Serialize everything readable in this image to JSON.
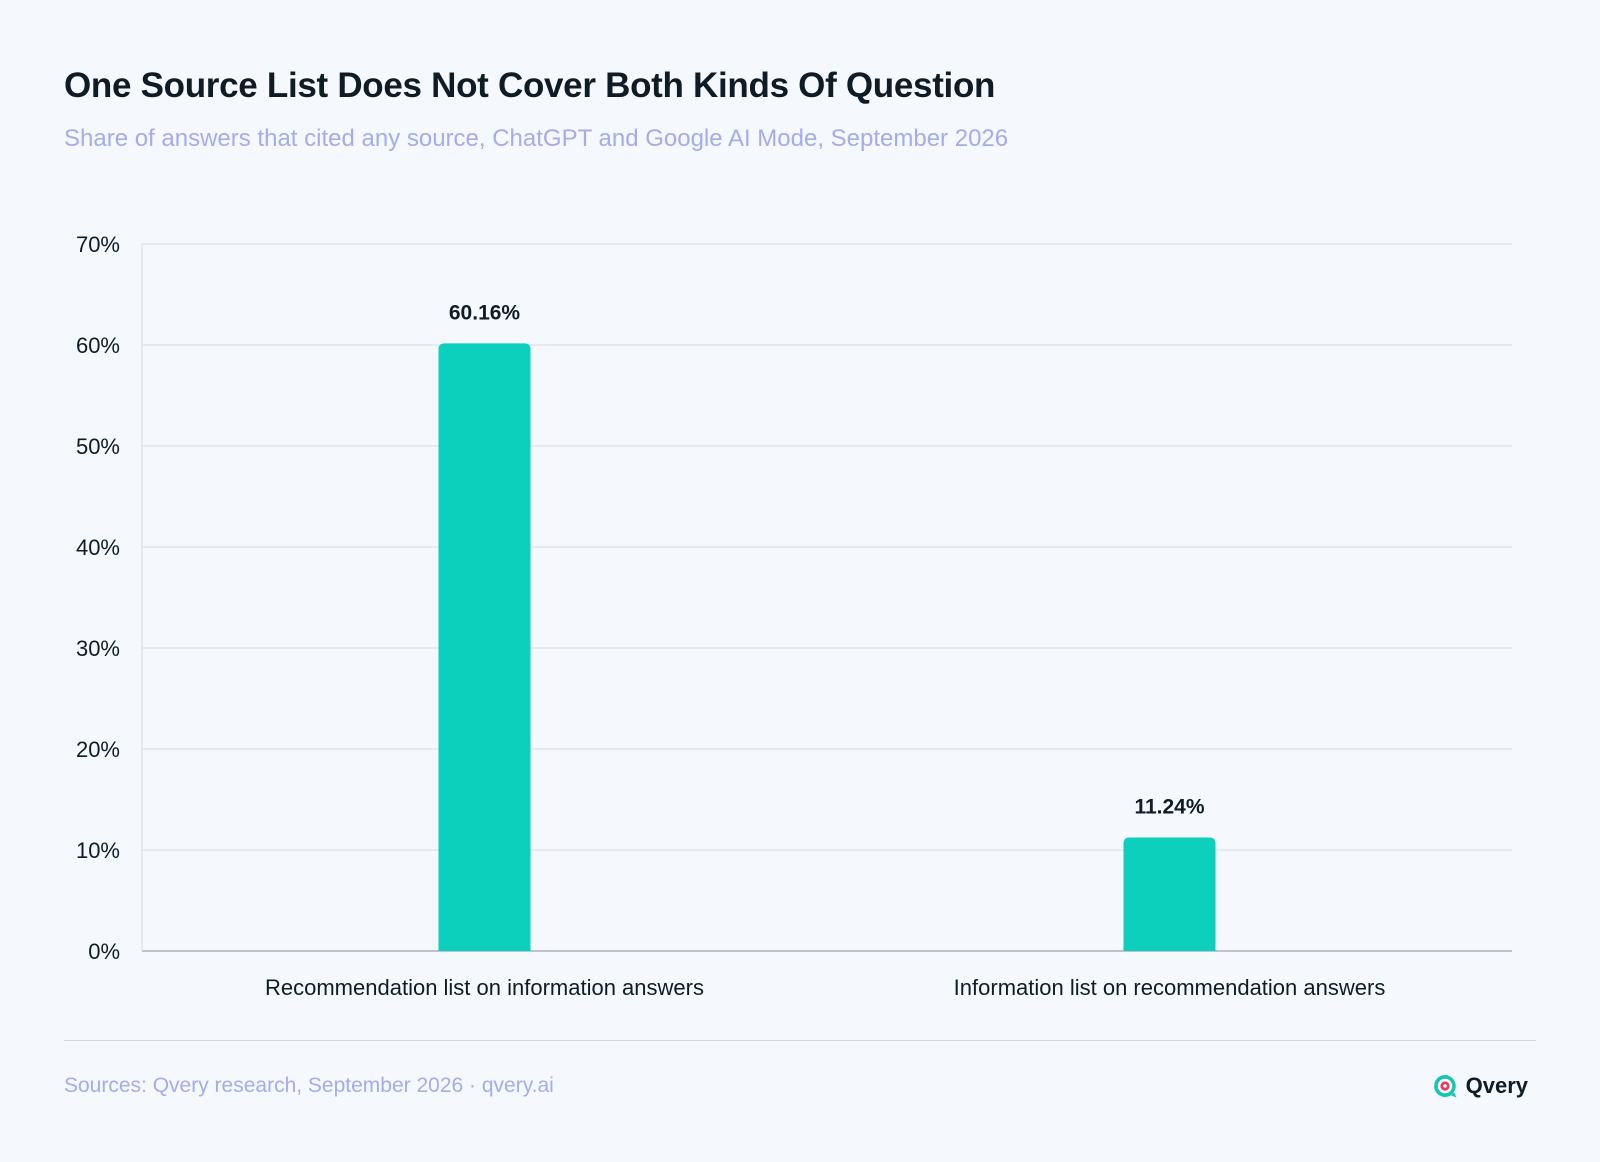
{
  "header": {
    "title": "One Source List Does Not Cover Both Kinds Of Question",
    "subtitle": "Share of answers that cited any source, ChatGPT and Google AI Mode, September 2026"
  },
  "footer": {
    "sources": "Sources: Qvery research, September 2026 · qvery.ai",
    "brand_name": "Qvery",
    "brand_icon": "qvery-logo-icon"
  },
  "colors": {
    "bar": "#0cd0bc",
    "title": "#0f1c26",
    "subtitle": "#a6abea",
    "grid": "#d4dbe4",
    "background": "#f5f8fd"
  },
  "chart_data": {
    "type": "bar",
    "categories": [
      "Recommendation list on information answers",
      "Information list on recommendation answers"
    ],
    "values": [
      60.16,
      11.24
    ],
    "data_labels": [
      "60.16%",
      "11.24%"
    ],
    "ylim": [
      0,
      70
    ],
    "yticks": [
      0,
      10,
      20,
      30,
      40,
      50,
      60,
      70
    ],
    "ytick_labels": [
      "0%",
      "10%",
      "20%",
      "30%",
      "40%",
      "50%",
      "60%",
      "70%"
    ],
    "grid": true,
    "legend": "none"
  }
}
